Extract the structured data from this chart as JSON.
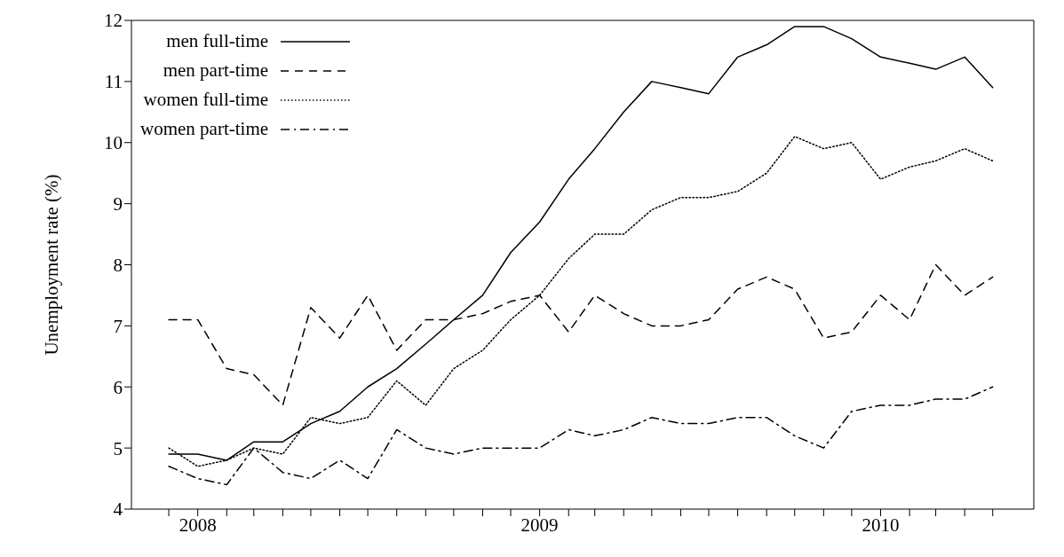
{
  "chart_data": {
    "type": "line",
    "ylabel": "Unemployment rate (%)",
    "x": [
      "2007-12",
      "2008-01",
      "2008-02",
      "2008-03",
      "2008-04",
      "2008-05",
      "2008-06",
      "2008-07",
      "2008-08",
      "2008-09",
      "2008-10",
      "2008-11",
      "2008-12",
      "2009-01",
      "2009-02",
      "2009-03",
      "2009-04",
      "2009-05",
      "2009-06",
      "2009-07",
      "2009-08",
      "2009-09",
      "2009-10",
      "2009-11",
      "2009-12",
      "2010-01",
      "2010-02",
      "2010-03",
      "2010-04",
      "2010-05"
    ],
    "series": [
      {
        "name": "men full-time",
        "color": "#000000",
        "line_style": "solid",
        "values": [
          4.9,
          4.9,
          4.8,
          5.1,
          5.1,
          5.4,
          5.6,
          6.0,
          6.3,
          6.7,
          7.1,
          7.5,
          8.2,
          8.7,
          9.4,
          9.9,
          10.5,
          11.0,
          10.9,
          10.8,
          11.4,
          11.6,
          11.9,
          11.9,
          11.7,
          11.4,
          11.3,
          11.2,
          11.4,
          10.9
        ]
      },
      {
        "name": "men part-time",
        "color": "#000000",
        "line_style": "dashed",
        "values": [
          7.1,
          7.1,
          6.3,
          6.2,
          5.7,
          7.3,
          6.8,
          7.5,
          6.6,
          7.1,
          7.1,
          7.2,
          7.4,
          7.5,
          6.9,
          7.5,
          7.2,
          7.0,
          7.0,
          7.1,
          7.6,
          7.8,
          7.6,
          6.8,
          6.9,
          7.5,
          7.1,
          8.0,
          7.5,
          7.8
        ]
      },
      {
        "name": "women full-time",
        "color": "#000000",
        "line_style": "dotted",
        "values": [
          5.0,
          4.7,
          4.8,
          5.0,
          4.9,
          5.5,
          5.4,
          5.5,
          6.1,
          5.7,
          6.3,
          6.6,
          7.1,
          7.5,
          8.1,
          8.5,
          8.5,
          8.9,
          9.1,
          9.1,
          9.2,
          9.5,
          10.1,
          9.9,
          10.0,
          9.4,
          9.6,
          9.7,
          9.9,
          9.7
        ]
      },
      {
        "name": "women part-time",
        "color": "#000000",
        "line_style": "dashdot",
        "values": [
          4.7,
          4.5,
          4.4,
          5.0,
          4.6,
          4.5,
          4.8,
          4.5,
          5.3,
          5.0,
          4.9,
          5.0,
          5.0,
          5.0,
          5.3,
          5.2,
          5.3,
          5.5,
          5.4,
          5.4,
          5.5,
          5.5,
          5.2,
          5.0,
          5.6,
          5.7,
          5.7,
          5.8,
          5.8,
          6.0
        ]
      }
    ],
    "xlim": [
      "2007-10-22",
      "2010-06-14"
    ],
    "xticks": [
      {
        "value": "2007-12",
        "label": null
      },
      {
        "value": "2008-01",
        "label": "2008"
      },
      {
        "value": "2008-02",
        "label": null
      },
      {
        "value": "2008-03",
        "label": null
      },
      {
        "value": "2008-04",
        "label": null
      },
      {
        "value": "2008-05",
        "label": null
      },
      {
        "value": "2008-06",
        "label": null
      },
      {
        "value": "2008-07",
        "label": null
      },
      {
        "value": "2008-08",
        "label": null
      },
      {
        "value": "2008-09",
        "label": null
      },
      {
        "value": "2008-10",
        "label": null
      },
      {
        "value": "2008-11",
        "label": null
      },
      {
        "value": "2008-12",
        "label": null
      },
      {
        "value": "2009-01",
        "label": "2009"
      },
      {
        "value": "2009-02",
        "label": null
      },
      {
        "value": "2009-03",
        "label": null
      },
      {
        "value": "2009-04",
        "label": null
      },
      {
        "value": "2009-05",
        "label": null
      },
      {
        "value": "2009-06",
        "label": null
      },
      {
        "value": "2009-07",
        "label": null
      },
      {
        "value": "2009-08",
        "label": null
      },
      {
        "value": "2009-09",
        "label": null
      },
      {
        "value": "2009-10",
        "label": null
      },
      {
        "value": "2009-11",
        "label": null
      },
      {
        "value": "2009-12",
        "label": null
      },
      {
        "value": "2010-01",
        "label": "2010"
      },
      {
        "value": "2010-02",
        "label": null
      },
      {
        "value": "2010-03",
        "label": null
      },
      {
        "value": "2010-04",
        "label": null
      },
      {
        "value": "2010-05",
        "label": null
      }
    ],
    "ylim": [
      4,
      12
    ],
    "yticks": [
      4,
      5,
      6,
      7,
      8,
      9,
      10,
      11,
      12
    ],
    "grid": false,
    "legend": "top left",
    "marker": "none"
  }
}
